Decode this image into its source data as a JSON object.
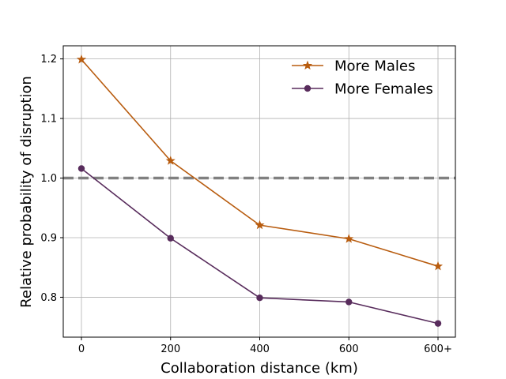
{
  "chart_data": {
    "type": "line",
    "categories": [
      "0",
      "200",
      "400",
      "600",
      "600+"
    ],
    "series": [
      {
        "name": "More Males",
        "values": [
          1.199,
          1.029,
          0.921,
          0.898,
          0.852
        ],
        "color": "#b85c0f",
        "marker": "star"
      },
      {
        "name": "More Females",
        "values": [
          1.016,
          0.899,
          0.799,
          0.792,
          0.756
        ],
        "color": "#582c5c",
        "marker": "circle"
      }
    ],
    "reference_line": {
      "y": 1.0,
      "color": "#808080",
      "style": "dashed"
    },
    "xlabel": "Collaboration distance (km)",
    "ylabel": "Relative probability of disruption",
    "ylim": [
      0.733,
      1.222
    ],
    "yticks": [
      "0.8",
      "0.9",
      "1.0",
      "1.1",
      "1.2"
    ],
    "grid": true,
    "legend_position": "top-right"
  }
}
